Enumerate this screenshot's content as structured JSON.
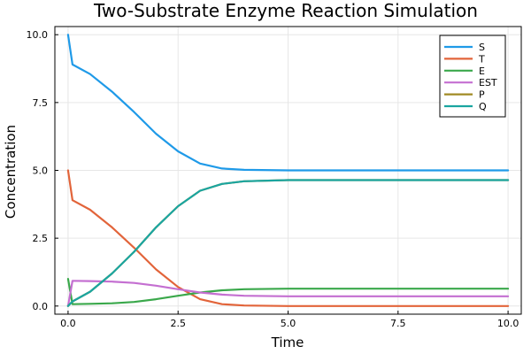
{
  "chart_data": {
    "type": "line",
    "title": "Two-Substrate Enzyme Reaction Simulation",
    "xlabel": "Time",
    "ylabel": "Concentration",
    "xlim": [
      -0.3,
      10.3
    ],
    "ylim": [
      -0.3,
      10.3
    ],
    "xticks": [
      0,
      2.5,
      5,
      7.5,
      10
    ],
    "xtick_labels": [
      "0.0",
      "2.5",
      "5.0",
      "7.5",
      "10.0"
    ],
    "yticks": [
      0,
      2.5,
      5,
      7.5,
      10
    ],
    "ytick_labels": [
      "0.0",
      "2.5",
      "5.0",
      "7.5",
      "10.0"
    ],
    "grid": true,
    "legend_position": "top-right",
    "x": [
      0,
      0.1,
      0.5,
      1,
      1.5,
      2,
      2.5,
      3,
      3.5,
      4,
      5,
      6,
      7,
      8,
      9,
      10
    ],
    "series": [
      {
        "name": "S",
        "color": "#1f9ae8",
        "values": [
          10.0,
          8.9,
          8.55,
          7.9,
          7.15,
          6.35,
          5.7,
          5.25,
          5.07,
          5.02,
          5.0,
          5.0,
          5.0,
          5.0,
          5.0,
          5.0
        ]
      },
      {
        "name": "T",
        "color": "#e2643a",
        "values": [
          5.0,
          3.9,
          3.55,
          2.9,
          2.15,
          1.35,
          0.7,
          0.25,
          0.07,
          0.02,
          0.0,
          0.0,
          0.0,
          0.0,
          0.0,
          0.0
        ]
      },
      {
        "name": "E",
        "color": "#3aa84b",
        "values": [
          1.0,
          0.07,
          0.08,
          0.1,
          0.15,
          0.25,
          0.38,
          0.5,
          0.58,
          0.62,
          0.64,
          0.64,
          0.64,
          0.64,
          0.64,
          0.64
        ]
      },
      {
        "name": "EST",
        "color": "#c46fd1",
        "values": [
          0.0,
          0.93,
          0.92,
          0.9,
          0.85,
          0.75,
          0.62,
          0.5,
          0.42,
          0.38,
          0.36,
          0.36,
          0.36,
          0.36,
          0.36,
          0.36
        ]
      },
      {
        "name": "P",
        "color": "#a08a24",
        "values": [
          0.0,
          0.17,
          0.53,
          1.2,
          2.0,
          2.9,
          3.68,
          4.25,
          4.5,
          4.6,
          4.64,
          4.64,
          4.64,
          4.64,
          4.64,
          4.64
        ]
      },
      {
        "name": "Q",
        "color": "#1aa5a0",
        "values": [
          0.0,
          0.17,
          0.53,
          1.2,
          2.0,
          2.9,
          3.68,
          4.25,
          4.5,
          4.6,
          4.64,
          4.64,
          4.64,
          4.64,
          4.64,
          4.64
        ]
      }
    ]
  }
}
